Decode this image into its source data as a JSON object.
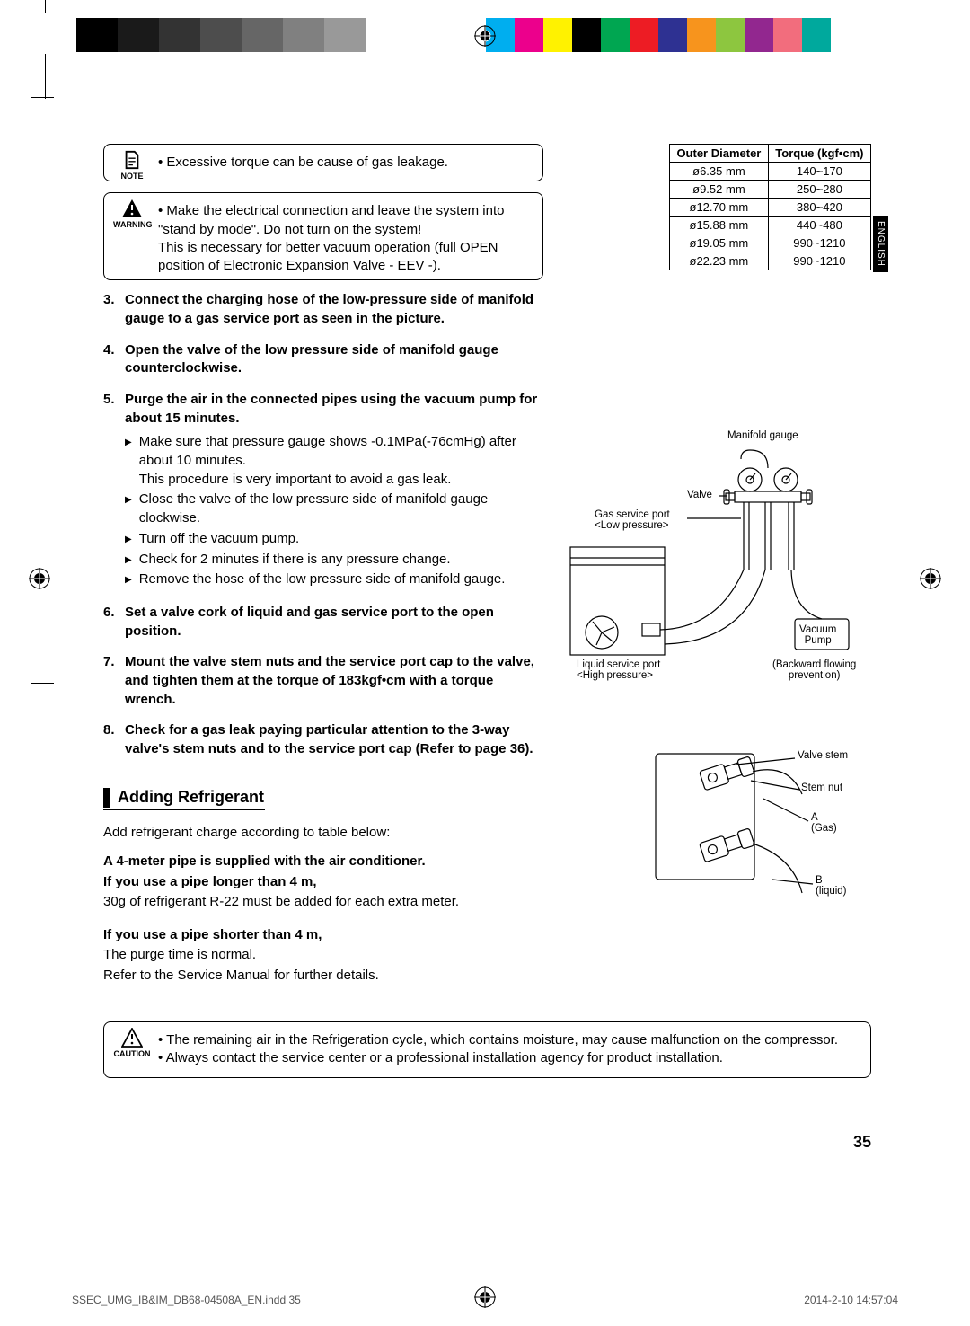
{
  "crop_marks": {
    "line_color": "#000000"
  },
  "color_bars": {
    "left": [
      "#000000",
      "#1a1a1a",
      "#333333",
      "#4d4d4d",
      "#666666",
      "#808080",
      "#999999"
    ],
    "right": [
      "#00aeef",
      "#ec008c",
      "#fff200",
      "#000000",
      "#00a651",
      "#ed1c24",
      "#2e3192",
      "#f7941d",
      "#8dc63f",
      "#92278f",
      "#f26d7d",
      "#00a99d"
    ]
  },
  "registration_mark_color": "#000000",
  "language_tab": "ENGLISH",
  "note_box": {
    "label": "NOTE",
    "items": [
      "Excessive torque can be cause of gas leakage."
    ]
  },
  "warning_box": {
    "label": "WARNING",
    "items": [
      "Make the electrical connection and leave the system into \"stand by mode\". Do not turn on the system!\nThis is necessary for better vacuum operation (full OPEN position of Electronic Expansion Valve - EEV -)."
    ]
  },
  "torque_table": {
    "header": [
      "Outer Diameter",
      "Torque (kgf•cm)"
    ],
    "rows": [
      [
        "ø6.35 mm",
        "140~170"
      ],
      [
        "ø9.52 mm",
        "250~280"
      ],
      [
        "ø12.70 mm",
        "380~420"
      ],
      [
        "ø15.88 mm",
        "440~480"
      ],
      [
        "ø19.05 mm",
        "990~1210"
      ],
      [
        "ø22.23 mm",
        "990~1210"
      ]
    ],
    "border_color": "#000000",
    "font_size": 13
  },
  "steps": [
    {
      "n": "3.",
      "title": "Connect the charging hose of the low-pressure side of manifold gauge to a gas service port as seen in the picture.",
      "subs": []
    },
    {
      "n": "4.",
      "title": "Open the valve of the low pressure side of manifold gauge counterclockwise.",
      "subs": []
    },
    {
      "n": "5.",
      "title": "Purge the air in the connected pipes using the vacuum pump for about 15 minutes.",
      "subs": [
        "Make sure that pressure gauge shows -0.1MPa(-76cmHg) after about 10 minutes.\nThis procedure is very important to avoid a gas leak.",
        "Close the valve of the low pressure side of manifold gauge clockwise.",
        "Turn off the vacuum pump.",
        "Check for 2 minutes if there is any pressure change.",
        "Remove the hose of the low pressure side of manifold gauge."
      ]
    },
    {
      "n": "6.",
      "title": "Set a valve cork of liquid and gas service port to the open position.",
      "subs": []
    },
    {
      "n": "7.",
      "title": "Mount the valve stem nuts and the service port cap to the valve, and tighten them at the torque of 183kgf•cm with a torque wrench.",
      "subs": []
    },
    {
      "n": "8.",
      "title": "Check for a gas leak paying particular attention to the 3-way valve's stem nuts and to the service port cap (Refer to page 36).",
      "subs": []
    }
  ],
  "diagram1": {
    "labels": {
      "manifold": "Manifold gauge",
      "valve": "Valve",
      "gas_port": "Gas service port\n<Low pressure>",
      "liquid_port": "Liquid service port\n<High pressure>",
      "vacuum_pump": "Vacuum\nPump",
      "backward": "(Backward flowing\nprevention)"
    }
  },
  "diagram2": {
    "labels": {
      "valve_stem": "Valve stem",
      "stem_nut": "Stem nut",
      "a_gas": "A\n(Gas)",
      "b_liquid": "B\n(liquid)"
    }
  },
  "section": {
    "heading": "Adding Refrigerant",
    "intro": "Add refrigerant charge according to table below:",
    "bold1": "A 4-meter pipe is supplied with the air conditioner.",
    "bold2": "If you use a pipe longer than 4 m,",
    "line1": "30g of refrigerant R-22 must be added for each extra meter.",
    "bold3": "If you use a pipe shorter than 4 m,",
    "line2": "The purge time is normal.",
    "line3": "Refer to the Service Manual for further details."
  },
  "caution_box": {
    "label": "CAUTION",
    "items": [
      "The remaining air in the Refrigeration cycle, which contains moisture, may cause malfunction on the compressor.",
      "Always contact the service center or a professional installation agency for product installation."
    ]
  },
  "page_number": "35",
  "footer": {
    "left": "SSEC_UMG_IB&IM_DB68-04508A_EN.indd   35",
    "right": "2014-2-10   14:57:04"
  }
}
